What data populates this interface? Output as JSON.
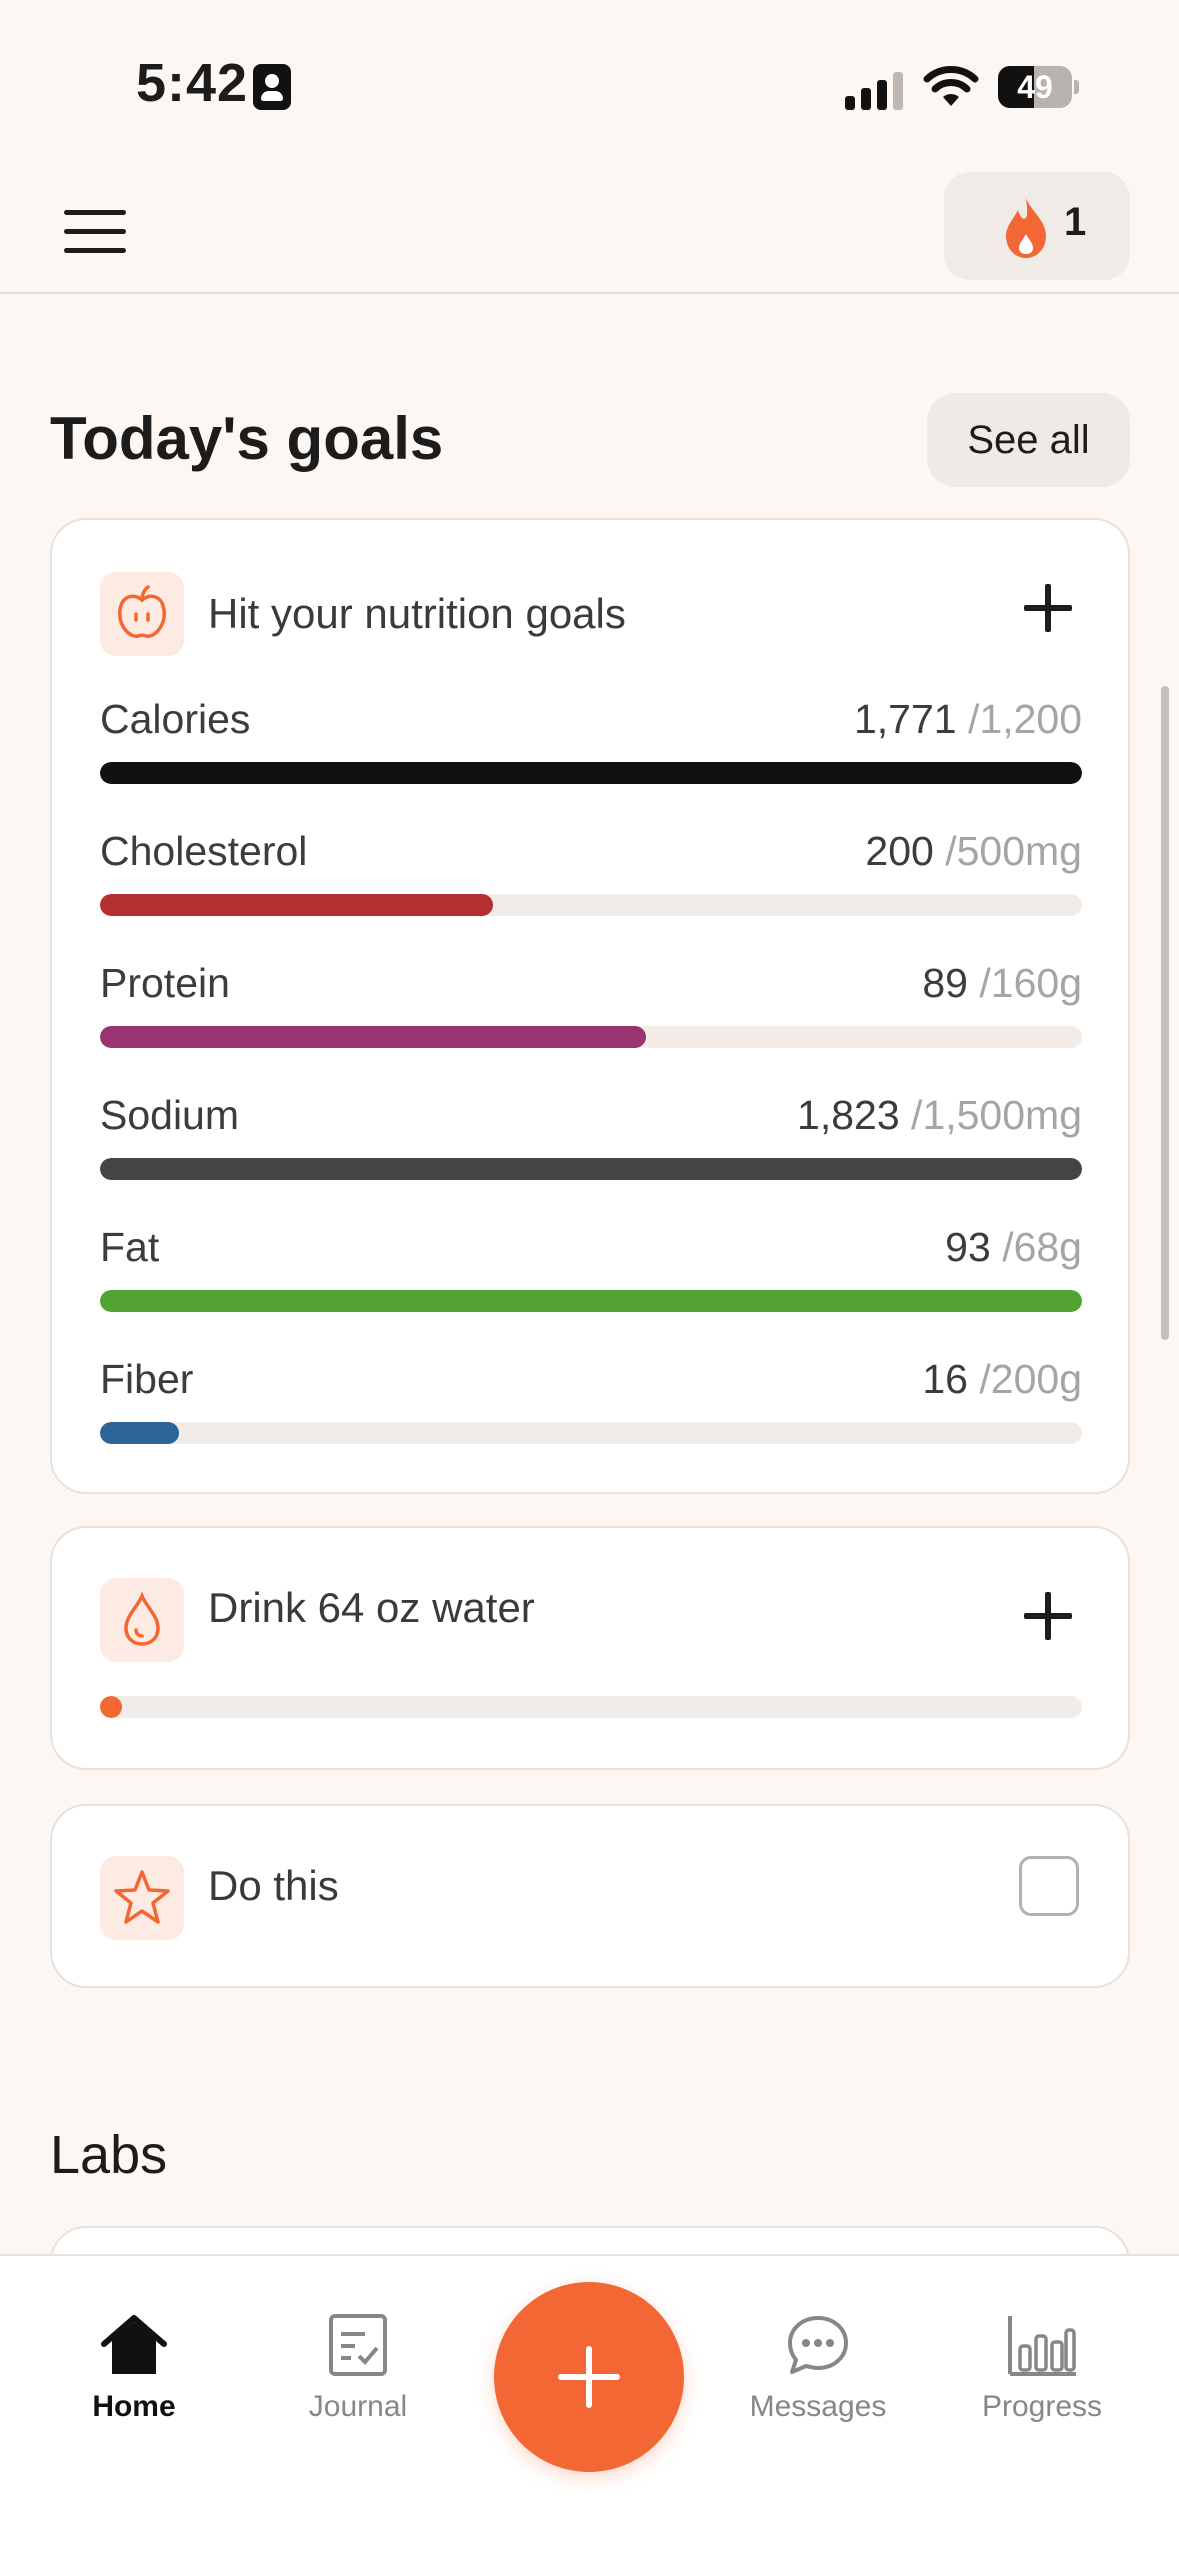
{
  "status_bar": {
    "time": "5:42",
    "battery": "49",
    "battery_level": 0.49
  },
  "header": {
    "streak_count": "1",
    "streak_icon": "flame-icon",
    "accent_color": "#f26733"
  },
  "goals_section": {
    "title": "Today's goals",
    "see_all_label": "See all"
  },
  "nutrition_goal": {
    "title": "Hit your nutrition goals",
    "icon": "apple-icon",
    "nutrients": [
      {
        "name": "Calories",
        "current": "1,771",
        "goal": "/1,200",
        "progress": 1.0,
        "color": "#111111"
      },
      {
        "name": "Cholesterol",
        "current": "200",
        "goal": "/500mg",
        "progress": 0.4,
        "color": "#b42f2f"
      },
      {
        "name": "Protein",
        "current": "89",
        "goal": "/160g",
        "progress": 0.556,
        "color": "#993471"
      },
      {
        "name": "Sodium",
        "current": "1,823",
        "goal": "/1,500mg",
        "progress": 1.0,
        "color": "#444444"
      },
      {
        "name": "Fat",
        "current": "93",
        "goal": "/68g",
        "progress": 1.0,
        "color": "#52a332"
      },
      {
        "name": "Fiber",
        "current": "16",
        "goal": "/200g",
        "progress": 0.08,
        "color": "#2d6496"
      }
    ]
  },
  "water_goal": {
    "title": "Drink 64 oz water",
    "icon": "water-drop-icon",
    "progress": 0.02,
    "color": "#f26733"
  },
  "custom_goal": {
    "title": "Do this",
    "icon": "star-icon",
    "checked": false
  },
  "labs_section": {
    "title": "Labs"
  },
  "tab_bar": {
    "tabs": [
      {
        "label": "Home",
        "icon": "home-icon",
        "active": true
      },
      {
        "label": "Journal",
        "icon": "journal-icon",
        "active": false
      },
      {
        "label": "Messages",
        "icon": "chat-bubble-icon",
        "active": false
      },
      {
        "label": "Progress",
        "icon": "bar-chart-icon",
        "active": false
      }
    ],
    "fab_icon": "plus-icon"
  }
}
